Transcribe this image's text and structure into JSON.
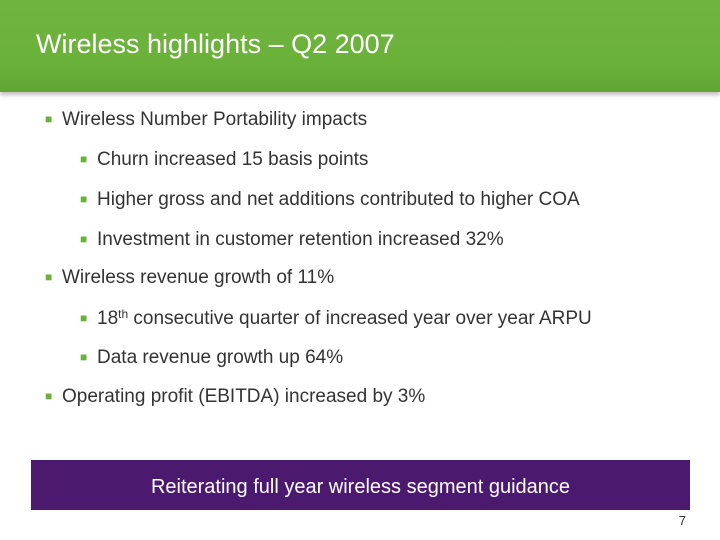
{
  "slide": {
    "title": "Wireless highlights – Q2 2007",
    "bullets": [
      {
        "text": "Wireless Number Portability impacts"
      },
      {
        "text": "Churn increased 15 basis points"
      },
      {
        "text": "Higher gross and net additions contributed to higher COA"
      },
      {
        "text": "Investment in customer retention increased 32%"
      },
      {
        "text": "Wireless revenue growth of 11%"
      },
      {
        "prefix": "18",
        "sup": "th",
        "text": " consecutive quarter of increased year over year ARPU"
      },
      {
        "text": "Data revenue growth up 64%"
      },
      {
        "text": "Operating profit (EBITDA) increased by 3%"
      }
    ],
    "banner": "Reiterating full year wireless segment guidance",
    "page_number": "7"
  },
  "colors": {
    "header_green": "#6ab13a",
    "banner_purple": "#4b1a6e",
    "bullet_marker": "#6ab13a",
    "text": "#333333"
  },
  "icons": {
    "bullet_marker": "square-bullet-icon"
  }
}
